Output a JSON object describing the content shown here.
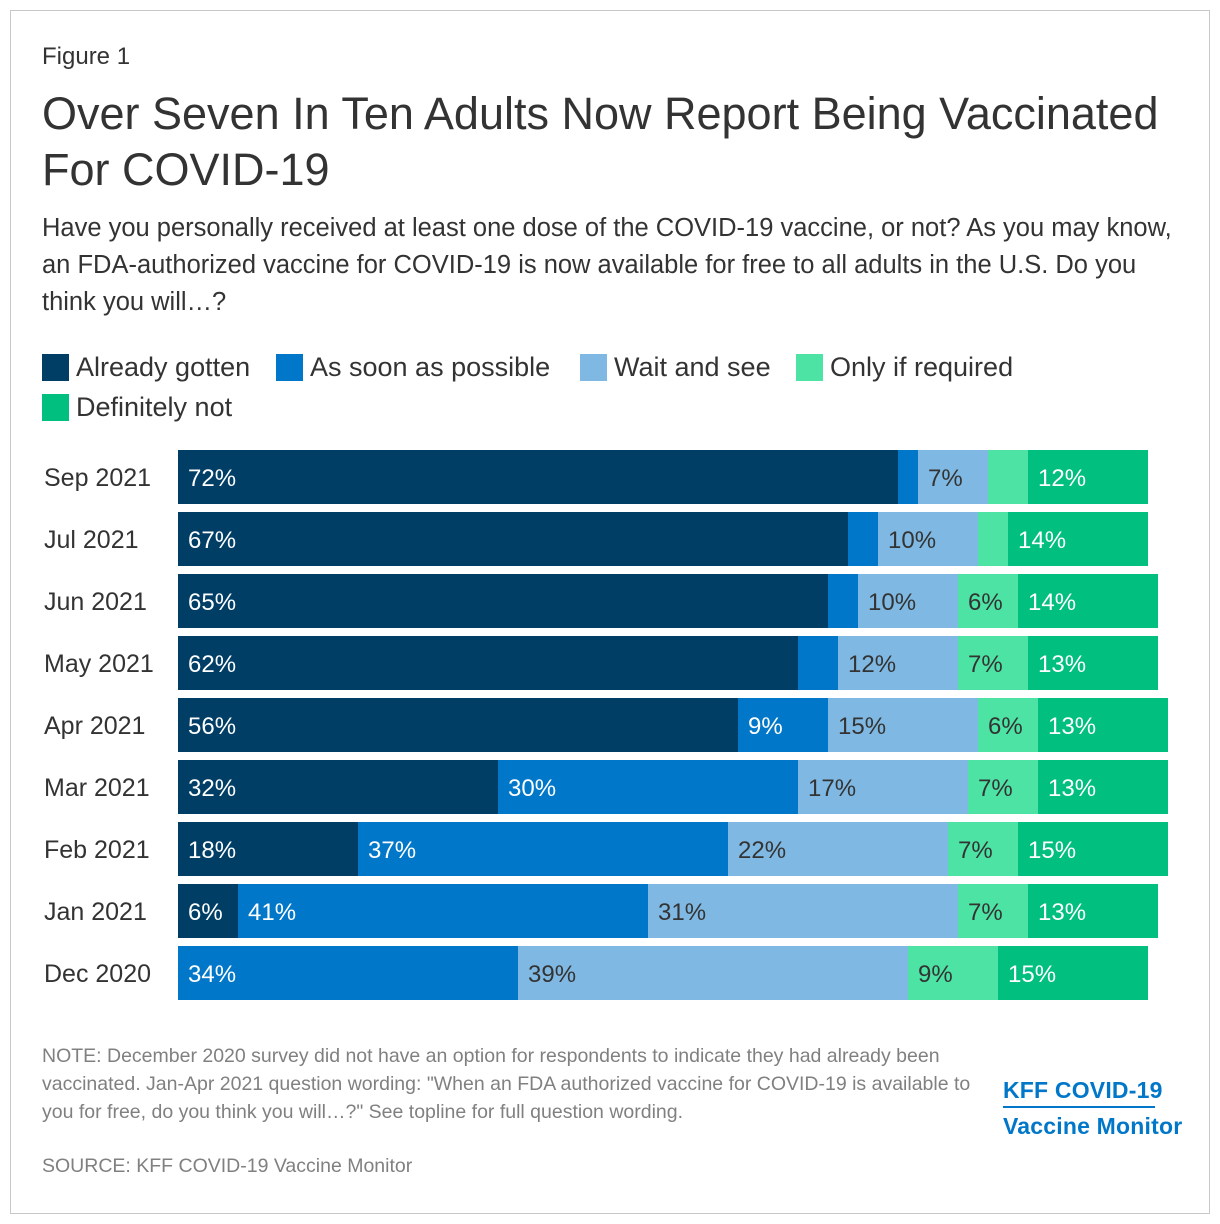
{
  "figure_label": "Figure 1",
  "title": "Over Seven In Ten Adults Now Report Being Vaccinated For COVID-19",
  "subtitle": "Have you personally received at least one dose of the COVID-19 vaccine, or not? As you may know, an FDA-authorized vaccine for COVID-19 is now available for free to all adults in the U.S. Do you think you will…?",
  "note": "NOTE: December 2020 survey did not have an option for respondents to indicate they had already been vaccinated. Jan-Apr 2021 question wording: \"When an FDA authorized vaccine for COVID-19 is available to you for free, do you think you will…?\" See topline for full question wording.",
  "source": "SOURCE: KFF COVID-19 Vaccine Monitor",
  "logo": {
    "line1": "KFF COVID-19",
    "line2": "Vaccine Monitor",
    "color": "#0077c8"
  },
  "chart_data": {
    "type": "bar",
    "orientation": "horizontal",
    "stacked": true,
    "title": "Over Seven In Ten Adults Now Report Being Vaccinated For COVID-19",
    "xlabel": "",
    "ylabel": "",
    "xlim": [
      0,
      100
    ],
    "grid": false,
    "legend_position": "top",
    "categories": [
      "Sep 2021",
      "Jul 2021",
      "Jun 2021",
      "May 2021",
      "Apr 2021",
      "Mar 2021",
      "Feb 2021",
      "Jan 2021",
      "Dec 2020"
    ],
    "series": [
      {
        "name": "Already gotten",
        "color": "#003e66",
        "label_color": "#ffffff",
        "values": [
          72,
          67,
          65,
          62,
          56,
          32,
          18,
          6,
          0
        ],
        "labels": [
          "72%",
          "67%",
          "65%",
          "62%",
          "56%",
          "32%",
          "18%",
          "6%",
          ""
        ]
      },
      {
        "name": "As soon as possible",
        "color": "#0077c8",
        "label_color": "#ffffff",
        "values": [
          2,
          3,
          3,
          4,
          9,
          30,
          37,
          41,
          34
        ],
        "labels": [
          "",
          "",
          "",
          "",
          "9%",
          "30%",
          "37%",
          "41%",
          "34%"
        ]
      },
      {
        "name": "Wait and see",
        "color": "#7fb9e3",
        "label_color": "#333333",
        "values": [
          7,
          10,
          10,
          12,
          15,
          17,
          22,
          31,
          39
        ],
        "labels": [
          "7%",
          "10%",
          "10%",
          "12%",
          "15%",
          "17%",
          "22%",
          "31%",
          "39%"
        ]
      },
      {
        "name": "Only if required",
        "color": "#4de3a5",
        "label_color": "#333333",
        "values": [
          4,
          3,
          6,
          7,
          6,
          7,
          7,
          7,
          9
        ],
        "labels": [
          "",
          "",
          "6%",
          "7%",
          "6%",
          "7%",
          "7%",
          "7%",
          "9%"
        ]
      },
      {
        "name": "Definitely not",
        "color": "#00bf7f",
        "label_color": "#ffffff",
        "values": [
          12,
          14,
          14,
          13,
          13,
          13,
          15,
          13,
          15
        ],
        "labels": [
          "12%",
          "14%",
          "14%",
          "13%",
          "13%",
          "13%",
          "15%",
          "13%",
          "15%"
        ]
      }
    ]
  }
}
